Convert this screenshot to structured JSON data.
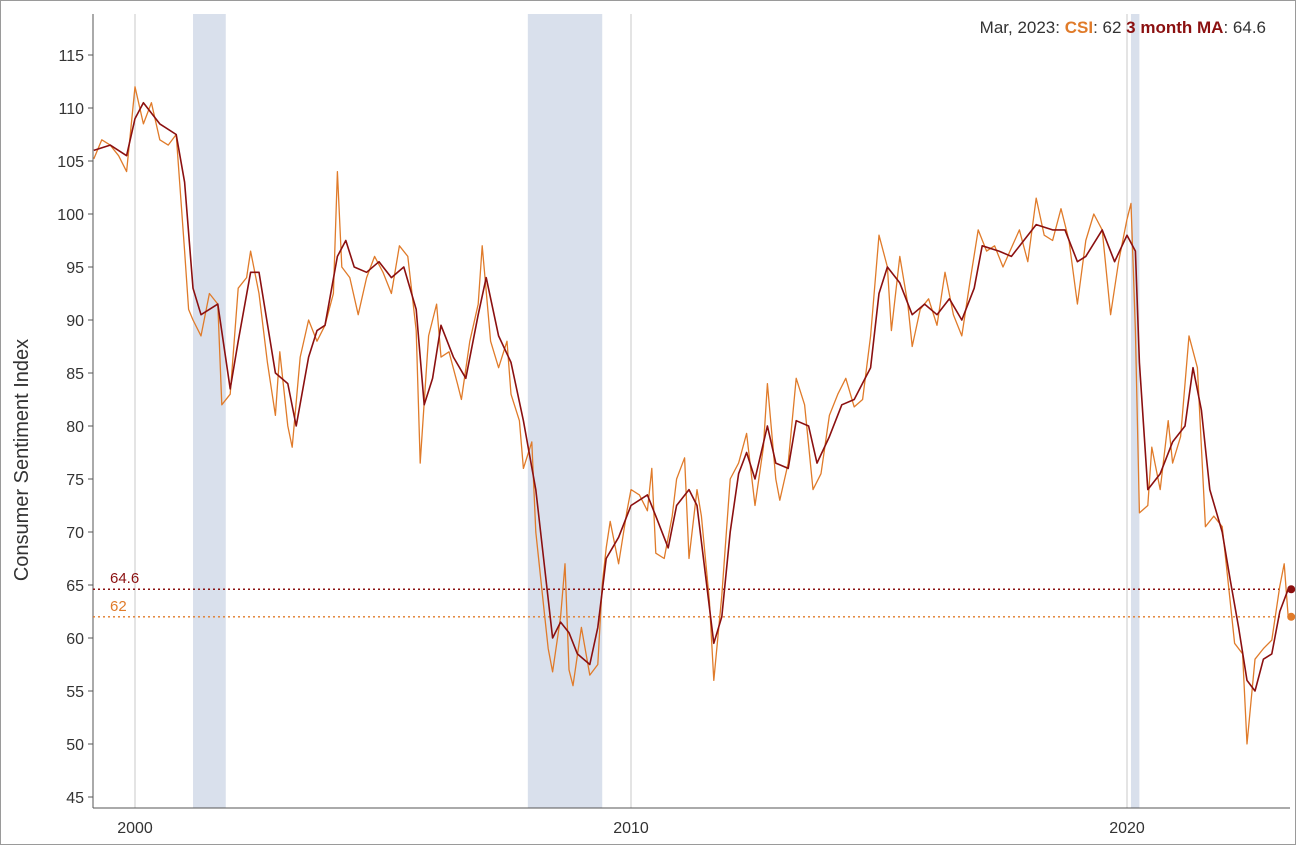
{
  "chart_data": {
    "type": "line",
    "title": "",
    "xlabel": "",
    "ylabel": "Consumer Sentiment Index",
    "xlim": [
      1999.15,
      2023.3
    ],
    "ylim": [
      44,
      117
    ],
    "yticks": [
      45,
      50,
      55,
      60,
      65,
      70,
      75,
      80,
      85,
      90,
      95,
      100,
      105,
      110,
      115
    ],
    "xticks": [
      {
        "value": 2000,
        "label": "2000"
      },
      {
        "value": 2010,
        "label": "2010"
      },
      {
        "value": 2020,
        "label": "2020"
      }
    ],
    "grid": "vertical lines at decades",
    "shaded_periods": [
      [
        2001.17,
        2001.83
      ],
      [
        2007.92,
        2009.42
      ],
      [
        2020.08,
        2020.25
      ]
    ],
    "colors": {
      "csi": "#e07b2a",
      "ma": "#8b1010",
      "shade": "#d9e0ec",
      "axis": "#555555",
      "grid": "#c8c8c8"
    },
    "status": {
      "date": "Mar, 2023",
      "csi_label": "CSI",
      "csi_value": "62",
      "ma_label": "3 month MA",
      "ma_value": "64.6"
    },
    "reference_lines": [
      {
        "series": "ma",
        "value": 64.6,
        "label": "64.6"
      },
      {
        "series": "csi",
        "value": 62,
        "label": "62"
      }
    ],
    "series": [
      {
        "name": "CSI",
        "points": [
          [
            1999.17,
            105.2
          ],
          [
            1999.33,
            107.0
          ],
          [
            1999.5,
            106.5
          ],
          [
            1999.67,
            105.5
          ],
          [
            1999.83,
            104.0
          ],
          [
            2000.0,
            112.0
          ],
          [
            2000.17,
            108.5
          ],
          [
            2000.33,
            110.5
          ],
          [
            2000.5,
            107.0
          ],
          [
            2000.67,
            106.5
          ],
          [
            2000.83,
            107.5
          ],
          [
            2001.0,
            96.5
          ],
          [
            2001.08,
            91.0
          ],
          [
            2001.17,
            90.0
          ],
          [
            2001.33,
            88.5
          ],
          [
            2001.5,
            92.5
          ],
          [
            2001.67,
            91.5
          ],
          [
            2001.75,
            82.0
          ],
          [
            2001.92,
            83.0
          ],
          [
            2002.08,
            93.0
          ],
          [
            2002.25,
            94.0
          ],
          [
            2002.33,
            96.5
          ],
          [
            2002.5,
            92.5
          ],
          [
            2002.67,
            86.0
          ],
          [
            2002.83,
            81.0
          ],
          [
            2002.92,
            87.0
          ],
          [
            2003.08,
            80.0
          ],
          [
            2003.17,
            78.0
          ],
          [
            2003.33,
            86.5
          ],
          [
            2003.5,
            90.0
          ],
          [
            2003.67,
            88.0
          ],
          [
            2003.83,
            89.5
          ],
          [
            2004.0,
            92.5
          ],
          [
            2004.08,
            104.0
          ],
          [
            2004.17,
            95.0
          ],
          [
            2004.33,
            94.0
          ],
          [
            2004.5,
            90.5
          ],
          [
            2004.67,
            94.0
          ],
          [
            2004.83,
            96.0
          ],
          [
            2005.0,
            94.5
          ],
          [
            2005.17,
            92.5
          ],
          [
            2005.33,
            97.0
          ],
          [
            2005.5,
            96.0
          ],
          [
            2005.67,
            89.0
          ],
          [
            2005.75,
            76.5
          ],
          [
            2005.92,
            88.5
          ],
          [
            2006.08,
            91.5
          ],
          [
            2006.17,
            86.5
          ],
          [
            2006.33,
            87.0
          ],
          [
            2006.5,
            84.0
          ],
          [
            2006.58,
            82.5
          ],
          [
            2006.75,
            88.0
          ],
          [
            2006.92,
            91.5
          ],
          [
            2007.0,
            97.0
          ],
          [
            2007.17,
            88.0
          ],
          [
            2007.33,
            85.5
          ],
          [
            2007.5,
            88.0
          ],
          [
            2007.58,
            83.0
          ],
          [
            2007.75,
            80.5
          ],
          [
            2007.83,
            76.0
          ],
          [
            2008.0,
            78.5
          ],
          [
            2008.08,
            70.0
          ],
          [
            2008.25,
            62.5
          ],
          [
            2008.33,
            59.0
          ],
          [
            2008.42,
            56.8
          ],
          [
            2008.58,
            62.0
          ],
          [
            2008.67,
            67.0
          ],
          [
            2008.75,
            57.0
          ],
          [
            2008.83,
            55.5
          ],
          [
            2009.0,
            61.0
          ],
          [
            2009.17,
            56.5
          ],
          [
            2009.33,
            57.5
          ],
          [
            2009.42,
            65.0
          ],
          [
            2009.5,
            68.5
          ],
          [
            2009.58,
            71.0
          ],
          [
            2009.75,
            67.0
          ],
          [
            2009.92,
            72.0
          ],
          [
            2010.0,
            74.0
          ],
          [
            2010.17,
            73.5
          ],
          [
            2010.33,
            72.0
          ],
          [
            2010.42,
            76.0
          ],
          [
            2010.5,
            68.0
          ],
          [
            2010.67,
            67.5
          ],
          [
            2010.83,
            71.5
          ],
          [
            2010.92,
            75.0
          ],
          [
            2011.08,
            77.0
          ],
          [
            2011.17,
            67.5
          ],
          [
            2011.33,
            74.0
          ],
          [
            2011.42,
            71.5
          ],
          [
            2011.58,
            63.5
          ],
          [
            2011.67,
            56.0
          ],
          [
            2011.83,
            64.0
          ],
          [
            2012.0,
            75.0
          ],
          [
            2012.17,
            76.5
          ],
          [
            2012.33,
            79.3
          ],
          [
            2012.5,
            72.5
          ],
          [
            2012.67,
            78.0
          ],
          [
            2012.75,
            84.0
          ],
          [
            2012.92,
            75.0
          ],
          [
            2013.0,
            73.0
          ],
          [
            2013.17,
            76.5
          ],
          [
            2013.33,
            84.5
          ],
          [
            2013.5,
            82.0
          ],
          [
            2013.67,
            74.0
          ],
          [
            2013.83,
            75.5
          ],
          [
            2014.0,
            81.0
          ],
          [
            2014.17,
            83.0
          ],
          [
            2014.33,
            84.5
          ],
          [
            2014.5,
            81.8
          ],
          [
            2014.67,
            82.5
          ],
          [
            2014.83,
            88.5
          ],
          [
            2015.0,
            98.0
          ],
          [
            2015.17,
            95.0
          ],
          [
            2015.25,
            89.0
          ],
          [
            2015.42,
            96.0
          ],
          [
            2015.58,
            91.5
          ],
          [
            2015.67,
            87.5
          ],
          [
            2015.83,
            91.0
          ],
          [
            2016.0,
            92.0
          ],
          [
            2016.17,
            89.5
          ],
          [
            2016.33,
            94.5
          ],
          [
            2016.5,
            90.5
          ],
          [
            2016.67,
            88.5
          ],
          [
            2016.83,
            93.5
          ],
          [
            2017.0,
            98.5
          ],
          [
            2017.17,
            96.5
          ],
          [
            2017.33,
            97.0
          ],
          [
            2017.5,
            95.0
          ],
          [
            2017.67,
            96.8
          ],
          [
            2017.83,
            98.5
          ],
          [
            2018.0,
            95.5
          ],
          [
            2018.17,
            101.5
          ],
          [
            2018.33,
            98.0
          ],
          [
            2018.5,
            97.5
          ],
          [
            2018.67,
            100.5
          ],
          [
            2018.83,
            97.5
          ],
          [
            2019.0,
            91.5
          ],
          [
            2019.17,
            97.5
          ],
          [
            2019.33,
            100.0
          ],
          [
            2019.5,
            98.5
          ],
          [
            2019.67,
            90.5
          ],
          [
            2019.83,
            95.5
          ],
          [
            2020.0,
            99.5
          ],
          [
            2020.08,
            101.0
          ],
          [
            2020.17,
            89.0
          ],
          [
            2020.25,
            71.8
          ],
          [
            2020.42,
            72.5
          ],
          [
            2020.5,
            78.0
          ],
          [
            2020.67,
            74.0
          ],
          [
            2020.83,
            80.5
          ],
          [
            2020.92,
            76.5
          ],
          [
            2021.08,
            79.0
          ],
          [
            2021.25,
            88.5
          ],
          [
            2021.42,
            85.5
          ],
          [
            2021.58,
            70.5
          ],
          [
            2021.75,
            71.5
          ],
          [
            2021.92,
            70.5
          ],
          [
            2022.0,
            67.0
          ],
          [
            2022.17,
            59.5
          ],
          [
            2022.33,
            58.5
          ],
          [
            2022.42,
            50.0
          ],
          [
            2022.58,
            58.0
          ],
          [
            2022.75,
            59.0
          ],
          [
            2022.92,
            59.8
          ],
          [
            2023.08,
            64.9
          ],
          [
            2023.17,
            67.0
          ],
          [
            2023.25,
            62.0
          ]
        ]
      },
      {
        "name": "3 month MA",
        "points": [
          [
            1999.17,
            106.0
          ],
          [
            1999.5,
            106.5
          ],
          [
            1999.83,
            105.5
          ],
          [
            2000.0,
            109.0
          ],
          [
            2000.17,
            110.5
          ],
          [
            2000.5,
            108.5
          ],
          [
            2000.83,
            107.5
          ],
          [
            2001.0,
            103.0
          ],
          [
            2001.17,
            93.0
          ],
          [
            2001.33,
            90.5
          ],
          [
            2001.67,
            91.5
          ],
          [
            2001.92,
            83.5
          ],
          [
            2002.08,
            88.0
          ],
          [
            2002.33,
            94.5
          ],
          [
            2002.5,
            94.5
          ],
          [
            2002.83,
            85.0
          ],
          [
            2003.08,
            84.0
          ],
          [
            2003.25,
            80.0
          ],
          [
            2003.5,
            86.5
          ],
          [
            2003.67,
            89.0
          ],
          [
            2003.83,
            89.5
          ],
          [
            2004.08,
            96.0
          ],
          [
            2004.25,
            97.5
          ],
          [
            2004.42,
            95.0
          ],
          [
            2004.67,
            94.5
          ],
          [
            2004.92,
            95.5
          ],
          [
            2005.17,
            94.0
          ],
          [
            2005.42,
            95.0
          ],
          [
            2005.67,
            91.0
          ],
          [
            2005.83,
            82.0
          ],
          [
            2006.0,
            84.5
          ],
          [
            2006.17,
            89.5
          ],
          [
            2006.42,
            86.5
          ],
          [
            2006.67,
            84.5
          ],
          [
            2006.92,
            90.5
          ],
          [
            2007.08,
            94.0
          ],
          [
            2007.33,
            88.5
          ],
          [
            2007.58,
            86.0
          ],
          [
            2007.83,
            80.5
          ],
          [
            2008.08,
            74.0
          ],
          [
            2008.25,
            67.0
          ],
          [
            2008.42,
            60.0
          ],
          [
            2008.58,
            61.5
          ],
          [
            2008.75,
            60.5
          ],
          [
            2008.92,
            58.5
          ],
          [
            2009.17,
            57.5
          ],
          [
            2009.33,
            61.0
          ],
          [
            2009.5,
            67.5
          ],
          [
            2009.75,
            69.5
          ],
          [
            2010.0,
            72.5
          ],
          [
            2010.33,
            73.5
          ],
          [
            2010.5,
            71.5
          ],
          [
            2010.75,
            68.5
          ],
          [
            2010.92,
            72.5
          ],
          [
            2011.17,
            74.0
          ],
          [
            2011.33,
            72.5
          ],
          [
            2011.5,
            66.0
          ],
          [
            2011.67,
            59.5
          ],
          [
            2011.83,
            62.0
          ],
          [
            2012.0,
            70.0
          ],
          [
            2012.17,
            75.5
          ],
          [
            2012.33,
            77.5
          ],
          [
            2012.5,
            75.0
          ],
          [
            2012.75,
            80.0
          ],
          [
            2012.92,
            76.5
          ],
          [
            2013.17,
            76.0
          ],
          [
            2013.33,
            80.5
          ],
          [
            2013.58,
            80.0
          ],
          [
            2013.75,
            76.5
          ],
          [
            2014.0,
            79.0
          ],
          [
            2014.25,
            82.0
          ],
          [
            2014.5,
            82.5
          ],
          [
            2014.83,
            85.5
          ],
          [
            2015.0,
            92.5
          ],
          [
            2015.17,
            95.0
          ],
          [
            2015.42,
            93.5
          ],
          [
            2015.67,
            90.5
          ],
          [
            2015.92,
            91.5
          ],
          [
            2016.17,
            90.5
          ],
          [
            2016.42,
            92.0
          ],
          [
            2016.67,
            90.0
          ],
          [
            2016.92,
            93.0
          ],
          [
            2017.08,
            97.0
          ],
          [
            2017.42,
            96.5
          ],
          [
            2017.67,
            96.0
          ],
          [
            2017.92,
            97.5
          ],
          [
            2018.17,
            99.0
          ],
          [
            2018.5,
            98.5
          ],
          [
            2018.75,
            98.5
          ],
          [
            2019.0,
            95.5
          ],
          [
            2019.17,
            96.0
          ],
          [
            2019.5,
            98.5
          ],
          [
            2019.75,
            95.5
          ],
          [
            2020.0,
            98.0
          ],
          [
            2020.17,
            96.5
          ],
          [
            2020.25,
            86.0
          ],
          [
            2020.42,
            74.0
          ],
          [
            2020.67,
            75.5
          ],
          [
            2020.92,
            78.5
          ],
          [
            2021.17,
            80.0
          ],
          [
            2021.33,
            85.5
          ],
          [
            2021.5,
            81.5
          ],
          [
            2021.67,
            74.0
          ],
          [
            2021.92,
            70.0
          ],
          [
            2022.08,
            65.5
          ],
          [
            2022.25,
            61.0
          ],
          [
            2022.42,
            56.0
          ],
          [
            2022.58,
            55.0
          ],
          [
            2022.75,
            58.0
          ],
          [
            2022.92,
            58.5
          ],
          [
            2023.08,
            62.5
          ],
          [
            2023.25,
            64.6
          ]
        ]
      }
    ]
  }
}
